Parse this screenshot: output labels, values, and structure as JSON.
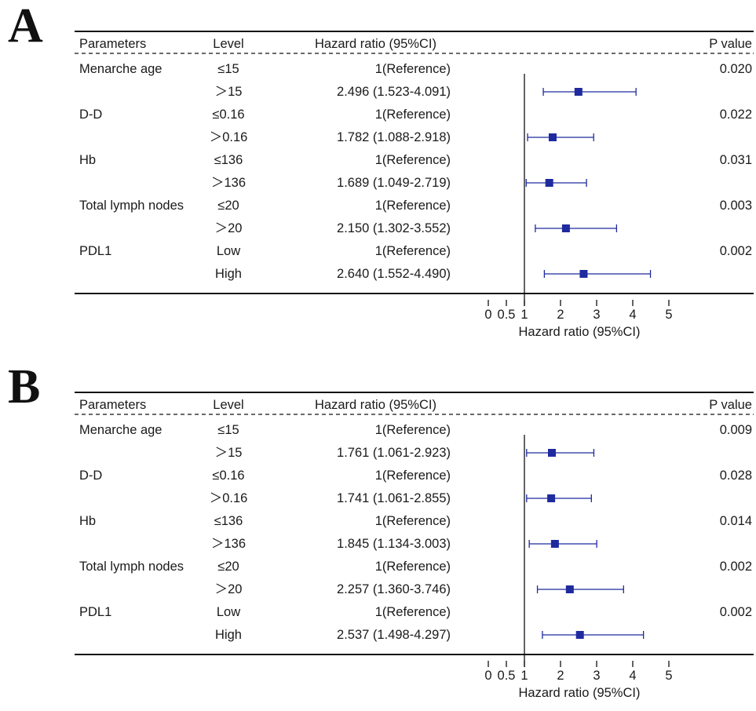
{
  "chart_data": [
    {
      "type": "forest",
      "panel_label": "A",
      "header": {
        "parameters": "Parameters",
        "level": "Level",
        "hr": "Hazard ratio (95%CI)",
        "p": "P value"
      },
      "rows": [
        {
          "parameter": "Menarche age",
          "level": "≤15",
          "hr_text": "1(Reference)",
          "p": "0.020"
        },
        {
          "parameter": "",
          "level": "＞15",
          "hr_text": "2.496 (1.523-4.091)",
          "p": "",
          "hr": 2.496,
          "lo": 1.523,
          "hi": 4.091
        },
        {
          "parameter": "D-D",
          "level": "≤0.16",
          "hr_text": "1(Reference)",
          "p": "0.022"
        },
        {
          "parameter": "",
          "level": "＞0.16",
          "hr_text": "1.782 (1.088-2.918)",
          "p": "",
          "hr": 1.782,
          "lo": 1.088,
          "hi": 2.918
        },
        {
          "parameter": "Hb",
          "level": "≤136",
          "hr_text": "1(Reference)",
          "p": "0.031"
        },
        {
          "parameter": "",
          "level": "＞136",
          "hr_text": "1.689 (1.049-2.719)",
          "p": "",
          "hr": 1.689,
          "lo": 1.049,
          "hi": 2.719
        },
        {
          "parameter": "Total lymph nodes",
          "level": "≤20",
          "hr_text": "1(Reference)",
          "p": "0.003"
        },
        {
          "parameter": "",
          "level": "＞20",
          "hr_text": "2.150 (1.302-3.552)",
          "p": "",
          "hr": 2.15,
          "lo": 1.302,
          "hi": 3.552
        },
        {
          "parameter": "PDL1",
          "level": "Low",
          "hr_text": "1(Reference)",
          "p": "0.002"
        },
        {
          "parameter": "",
          "level": "High",
          "hr_text": "2.640 (1.552-4.490)",
          "p": "",
          "hr": 2.64,
          "lo": 1.552,
          "hi": 4.49
        }
      ],
      "x_ticks": [
        0,
        0.5,
        1,
        2,
        3,
        4,
        5
      ],
      "x_tick_labels": [
        "0",
        "0.5",
        "1",
        "2",
        "3",
        "4",
        "5"
      ],
      "xlabel": "Hazard ratio (95%CI)",
      "reference_line": 1,
      "marker_color": "#1f2a9e"
    },
    {
      "type": "forest",
      "panel_label": "B",
      "header": {
        "parameters": "Parameters",
        "level": "Level",
        "hr": "Hazard ratio (95%CI)",
        "p": "P value"
      },
      "rows": [
        {
          "parameter": "Menarche age",
          "level": "≤15",
          "hr_text": "1(Reference)",
          "p": "0.009"
        },
        {
          "parameter": "",
          "level": "＞15",
          "hr_text": "1.761 (1.061-2.923)",
          "p": "",
          "hr": 1.761,
          "lo": 1.061,
          "hi": 2.923
        },
        {
          "parameter": "D-D",
          "level": "≤0.16",
          "hr_text": "1(Reference)",
          "p": "0.028"
        },
        {
          "parameter": "",
          "level": "＞0.16",
          "hr_text": "1.741 (1.061-2.855)",
          "p": "",
          "hr": 1.741,
          "lo": 1.061,
          "hi": 2.855
        },
        {
          "parameter": "Hb",
          "level": "≤136",
          "hr_text": "1(Reference)",
          "p": "0.014"
        },
        {
          "parameter": "",
          "level": "＞136",
          "hr_text": "1.845 (1.134-3.003)",
          "p": "",
          "hr": 1.845,
          "lo": 1.134,
          "hi": 3.003
        },
        {
          "parameter": "Total lymph nodes",
          "level": "≤20",
          "hr_text": "1(Reference)",
          "p": "0.002"
        },
        {
          "parameter": "",
          "level": "＞20",
          "hr_text": "2.257 (1.360-3.746)",
          "p": "",
          "hr": 2.257,
          "lo": 1.36,
          "hi": 3.746
        },
        {
          "parameter": "PDL1",
          "level": "Low",
          "hr_text": "1(Reference)",
          "p": "0.002"
        },
        {
          "parameter": "",
          "level": "High",
          "hr_text": "2.537 (1.498-4.297)",
          "p": "",
          "hr": 2.537,
          "lo": 1.498,
          "hi": 4.297
        }
      ],
      "x_ticks": [
        0,
        0.5,
        1,
        2,
        3,
        4,
        5
      ],
      "x_tick_labels": [
        "0",
        "0.5",
        "1",
        "2",
        "3",
        "4",
        "5"
      ],
      "xlabel": "Hazard ratio (95%CI)",
      "reference_line": 1,
      "marker_color": "#1f2a9e"
    }
  ]
}
